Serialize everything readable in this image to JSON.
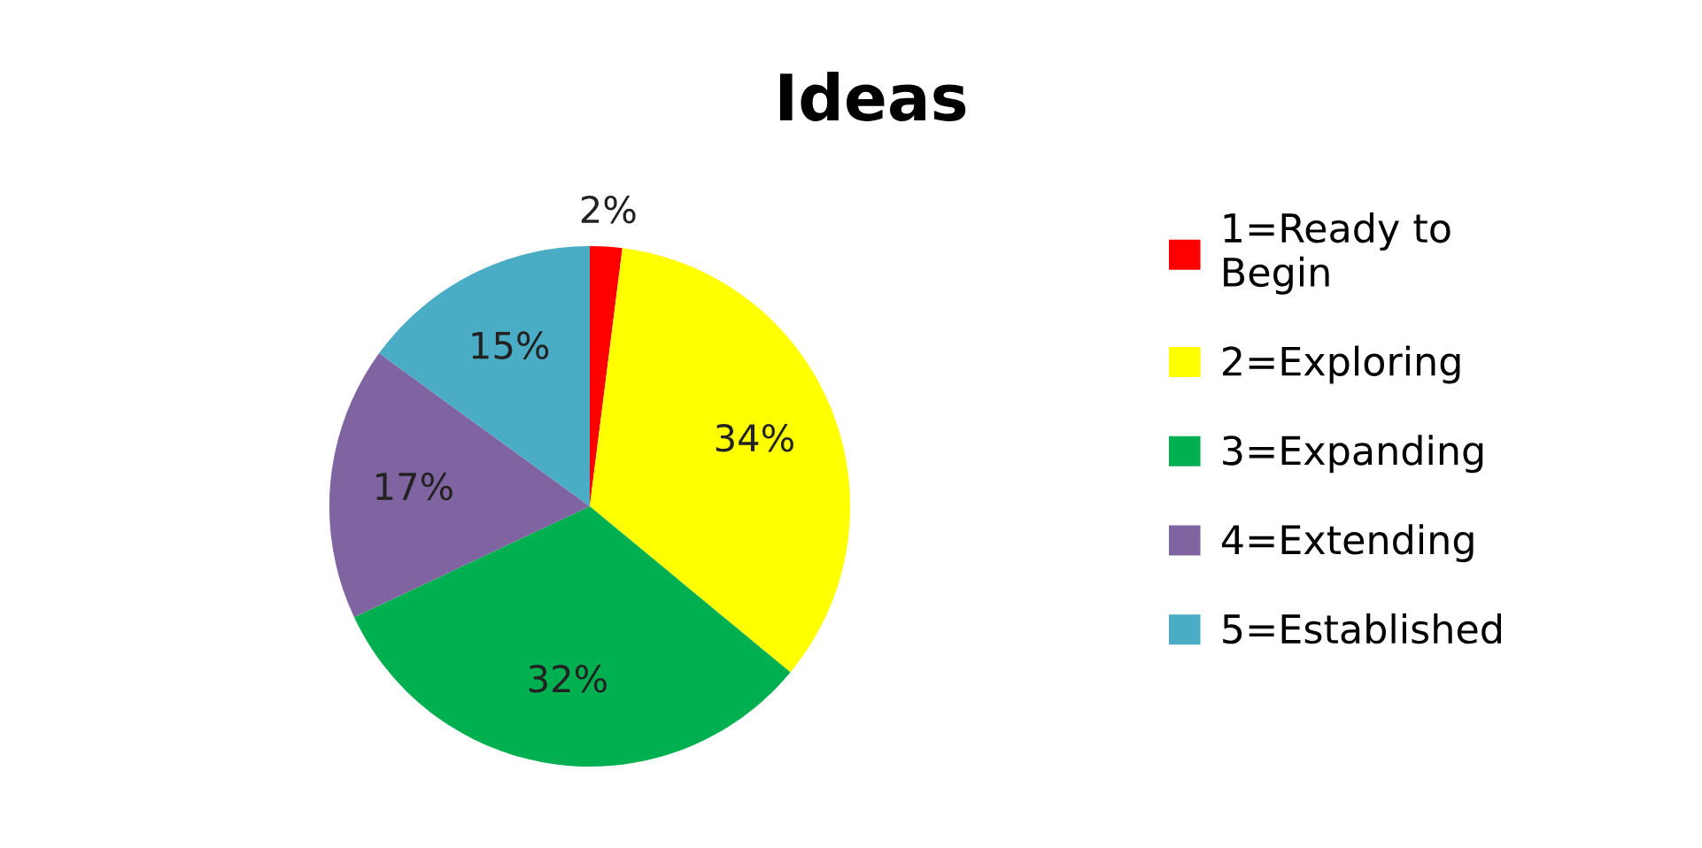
{
  "chart_data": {
    "type": "pie",
    "title": "Ideas",
    "categories": [
      "1=Ready to Begin",
      "2=Exploring",
      "3=Expanding",
      "4=Extending",
      "5=Established"
    ],
    "values": [
      2,
      34,
      32,
      17,
      15
    ],
    "colors": [
      "#ff0000",
      "#ffff00",
      "#00b050",
      "#8064a2",
      "#4bacc6"
    ],
    "value_labels": [
      "2%",
      "34%",
      "32%",
      "17%",
      "15%"
    ],
    "legend": "right"
  }
}
